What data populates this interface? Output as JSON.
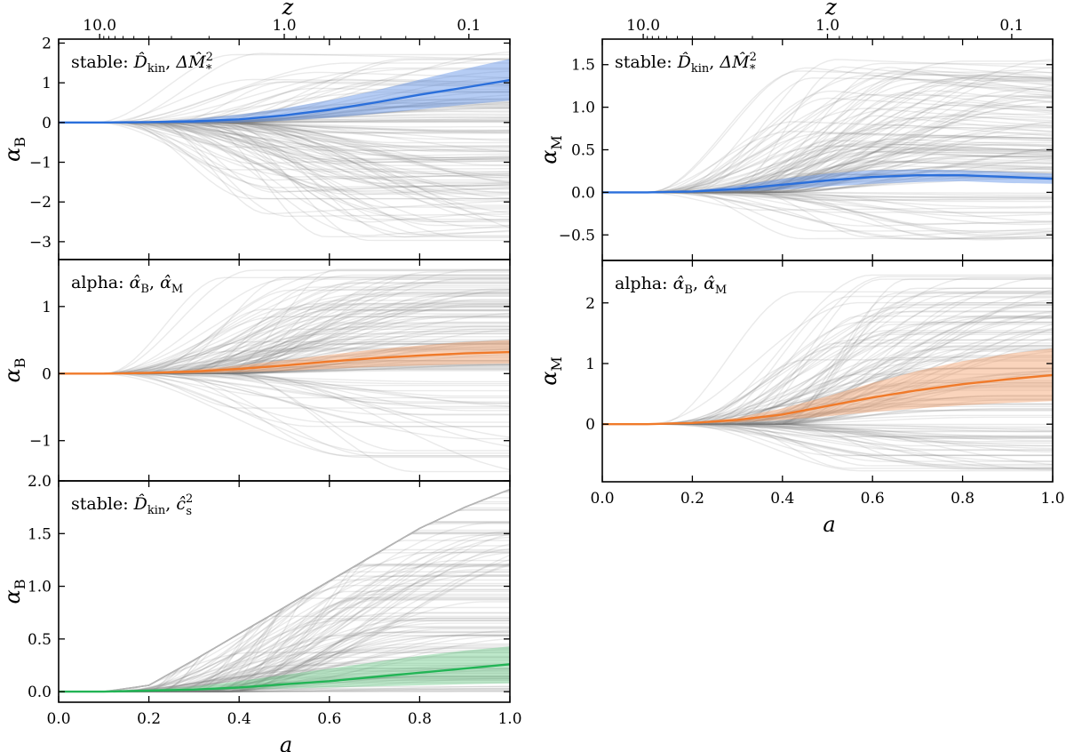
{
  "figure": {
    "x_label": "a",
    "x_sub": "",
    "top_axis_label": "z",
    "top_ticks": [
      {
        "z": 10.0,
        "label": "10.0"
      },
      {
        "z": 1.0,
        "label": "1.0"
      },
      {
        "z": 0.1,
        "label": "0.1"
      }
    ],
    "x_ticks": [
      0.0,
      0.2,
      0.4,
      0.6,
      0.8,
      1.0
    ],
    "x_tick_labels": [
      "0.0",
      "0.2",
      "0.4",
      "0.6",
      "0.8",
      "1.0"
    ]
  },
  "chart_data": [
    {
      "id": "top-left",
      "type": "line",
      "panel_label": "stable: D̂kin, ΔM̂²*",
      "label_prefix": "stable:",
      "label_parts": [
        "D̂",
        "kin",
        ", ",
        "ΔM̂",
        "2",
        "*"
      ],
      "ylabel_main": "α",
      "ylabel_sub": "B",
      "xlim": [
        0,
        1
      ],
      "ylim": [
        -3.45,
        2.1
      ],
      "yticks": [
        -3,
        -2,
        -1,
        0,
        1,
        2
      ],
      "ytick_labels": [
        "−3",
        "−2",
        "−1",
        "0",
        "1",
        "2"
      ],
      "color": "#2a6fdb",
      "band_color": "#5b8fe6",
      "bg_range": [
        -3.0,
        1.8
      ],
      "bg_shape": "hump",
      "x": [
        0,
        0.1,
        0.2,
        0.3,
        0.4,
        0.5,
        0.6,
        0.7,
        0.8,
        0.9,
        1.0
      ],
      "mean": [
        0,
        0,
        0.01,
        0.03,
        0.08,
        0.18,
        0.32,
        0.5,
        0.7,
        0.88,
        1.07
      ],
      "upper": [
        0,
        0,
        0.03,
        0.09,
        0.2,
        0.36,
        0.56,
        0.8,
        1.08,
        1.35,
        1.6
      ],
      "lower": [
        0,
        0,
        -0.01,
        -0.02,
        0.0,
        0.05,
        0.12,
        0.22,
        0.33,
        0.45,
        0.55
      ]
    },
    {
      "id": "mid-left",
      "type": "line",
      "panel_label": "alpha: α̂B, α̂M",
      "label_prefix": "alpha:",
      "label_parts": [
        "α̂",
        "B",
        ", ",
        "α̂",
        "M",
        ""
      ],
      "ylabel_main": "α",
      "ylabel_sub": "B",
      "xlim": [
        0,
        1
      ],
      "ylim": [
        -1.6,
        1.7
      ],
      "yticks": [
        -1,
        0,
        1
      ],
      "ytick_labels": [
        "−1",
        "0",
        "1"
      ],
      "color": "#f07a2a",
      "band_color": "#f3a06a",
      "bg_range": [
        -1.55,
        1.6
      ],
      "bg_shape": "rise",
      "x": [
        0,
        0.1,
        0.2,
        0.3,
        0.4,
        0.5,
        0.6,
        0.7,
        0.8,
        0.9,
        1.0
      ],
      "mean": [
        0,
        0,
        0.01,
        0.03,
        0.07,
        0.12,
        0.18,
        0.23,
        0.27,
        0.3,
        0.32
      ],
      "upper": [
        0,
        0,
        0.02,
        0.06,
        0.12,
        0.2,
        0.28,
        0.36,
        0.42,
        0.47,
        0.5
      ],
      "lower": [
        0,
        0,
        0.0,
        0.0,
        0.02,
        0.04,
        0.07,
        0.1,
        0.12,
        0.14,
        0.15
      ]
    },
    {
      "id": "bottom-left",
      "type": "line",
      "panel_label": "stable: D̂kin, ĉ²s",
      "label_prefix": "stable:",
      "label_parts": [
        "D̂",
        "kin",
        ", ",
        "ĉ",
        "2",
        "s"
      ],
      "ylabel_main": "α",
      "ylabel_sub": "B",
      "xlim": [
        0,
        1
      ],
      "ylim": [
        -0.1,
        2.0
      ],
      "yticks": [
        0.0,
        0.5,
        1.0,
        1.5,
        2.0
      ],
      "ytick_labels": [
        "0.0",
        "0.5",
        "1.0",
        "1.5",
        "2.0"
      ],
      "color": "#22b455",
      "band_color": "#6dcc8a",
      "bg_range": [
        0.0,
        1.92
      ],
      "bg_shape": "rise_pos",
      "envelope": [
        0,
        0,
        0.06,
        0.3,
        0.55,
        0.8,
        1.05,
        1.3,
        1.55,
        1.75,
        1.92
      ],
      "x": [
        0,
        0.1,
        0.2,
        0.3,
        0.4,
        0.5,
        0.6,
        0.7,
        0.8,
        0.9,
        1.0
      ],
      "mean": [
        0,
        0,
        0.01,
        0.02,
        0.04,
        0.07,
        0.1,
        0.14,
        0.18,
        0.22,
        0.26
      ],
      "upper": [
        0,
        0,
        0.02,
        0.05,
        0.1,
        0.16,
        0.22,
        0.28,
        0.34,
        0.39,
        0.43
      ],
      "lower": [
        0,
        0,
        0.0,
        0.01,
        0.02,
        0.03,
        0.04,
        0.05,
        0.06,
        0.07,
        0.08
      ]
    },
    {
      "id": "top-right",
      "type": "line",
      "panel_label": "stable: D̂kin, ΔM̂²*",
      "label_prefix": "stable:",
      "label_parts": [
        "D̂",
        "kin",
        ", ",
        "ΔM̂",
        "2",
        "*"
      ],
      "ylabel_main": "α",
      "ylabel_sub": "M",
      "xlim": [
        0,
        1
      ],
      "ylim": [
        -0.8,
        1.8
      ],
      "yticks": [
        -0.5,
        0.0,
        0.5,
        1.0,
        1.5
      ],
      "ytick_labels": [
        "−0.5",
        "0.0",
        "0.5",
        "1.0",
        "1.5"
      ],
      "color": "#2a6fdb",
      "band_color": "#5b8fe6",
      "bg_range": [
        -0.7,
        1.6
      ],
      "bg_shape": "peak",
      "x": [
        0,
        0.1,
        0.2,
        0.3,
        0.4,
        0.5,
        0.6,
        0.7,
        0.8,
        0.9,
        1.0
      ],
      "mean": [
        0,
        0,
        0.01,
        0.04,
        0.09,
        0.14,
        0.18,
        0.2,
        0.2,
        0.18,
        0.16
      ],
      "upper": [
        0,
        0,
        0.02,
        0.08,
        0.16,
        0.22,
        0.26,
        0.27,
        0.26,
        0.24,
        0.22
      ],
      "lower": [
        0,
        0,
        0.0,
        0.01,
        0.03,
        0.07,
        0.1,
        0.12,
        0.13,
        0.11,
        0.1
      ]
    },
    {
      "id": "bottom-right",
      "type": "line",
      "panel_label": "alpha: α̂B, α̂M",
      "label_prefix": "alpha:",
      "label_parts": [
        "α̂",
        "B",
        ", ",
        "α̂",
        "M",
        ""
      ],
      "ylabel_main": "α",
      "ylabel_sub": "M",
      "xlim": [
        0,
        1
      ],
      "ylim": [
        -0.95,
        2.7
      ],
      "yticks": [
        0,
        1,
        2
      ],
      "ytick_labels": [
        "0",
        "1",
        "2"
      ],
      "color": "#f07a2a",
      "band_color": "#f3a06a",
      "bg_range": [
        -0.8,
        2.5
      ],
      "bg_shape": "rise",
      "x": [
        0,
        0.1,
        0.2,
        0.3,
        0.4,
        0.5,
        0.6,
        0.7,
        0.8,
        0.9,
        1.0
      ],
      "mean": [
        0,
        0,
        0.02,
        0.07,
        0.16,
        0.3,
        0.44,
        0.56,
        0.66,
        0.74,
        0.81
      ],
      "upper": [
        0,
        0,
        0.03,
        0.11,
        0.26,
        0.46,
        0.68,
        0.88,
        1.04,
        1.16,
        1.25
      ],
      "lower": [
        0,
        0,
        0.01,
        0.03,
        0.07,
        0.13,
        0.2,
        0.26,
        0.31,
        0.35,
        0.38
      ]
    }
  ]
}
